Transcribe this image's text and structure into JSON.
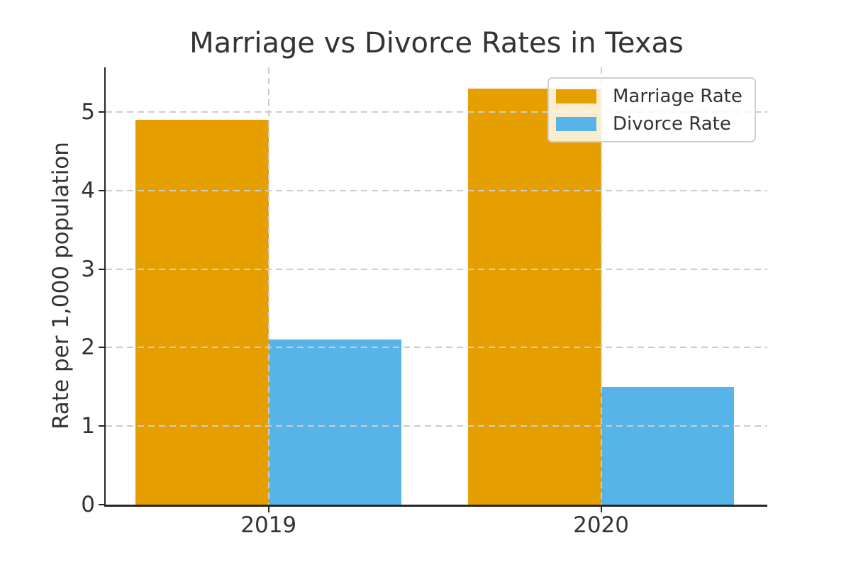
{
  "chart_data": {
    "type": "bar",
    "title": "Marriage vs Divorce Rates in Texas",
    "xlabel": "",
    "ylabel": "Rate per 1,000 population",
    "categories": [
      "2019",
      "2020"
    ],
    "series": [
      {
        "name": "Marriage Rate",
        "values": [
          4.9,
          5.3
        ],
        "color": "#E69F00"
      },
      {
        "name": "Divorce Rate",
        "values": [
          2.1,
          1.5
        ],
        "color": "#56B4E9"
      }
    ],
    "bar_width": 0.4,
    "yticks": [
      0,
      1,
      2,
      3,
      4,
      5
    ],
    "ylim": [
      0,
      5.57
    ],
    "xlim": [
      -0.49,
      1.5
    ],
    "grid": "dashed, drawn over bars, horizontal at y ticks and vertical at category centers",
    "legend_position": "upper right",
    "colors": {
      "grid": "#cccccc",
      "spine": "#262626",
      "text": "#333333",
      "background": "#ffffff",
      "legend_border": "#d0d0d0"
    }
  }
}
